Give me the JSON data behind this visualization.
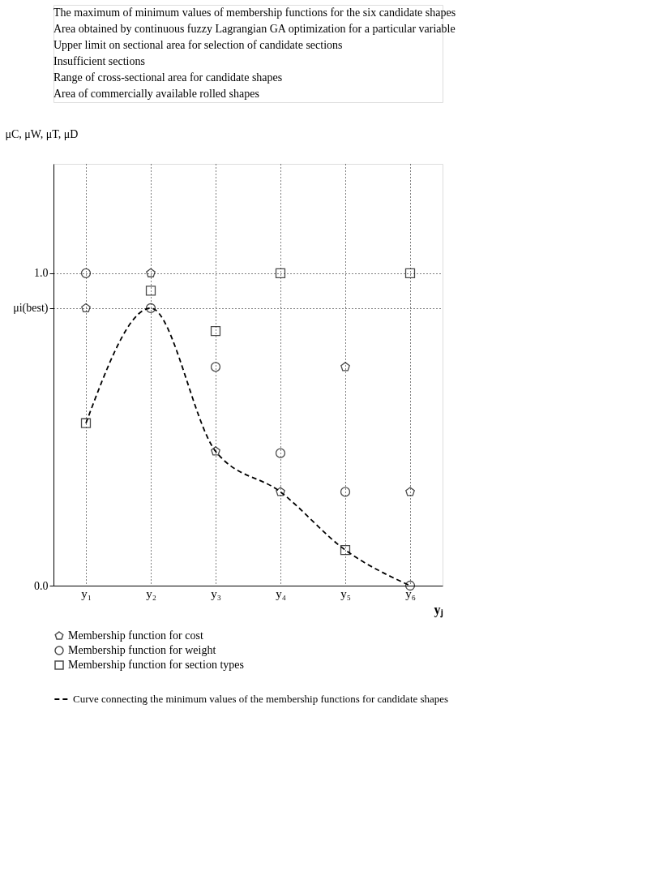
{
  "chart_data": {
    "type": "scatter",
    "xlabel": "yⱼ",
    "ylabel": "μC, μW, μT, μD",
    "categories": [
      "y₁",
      "y₂",
      "y₃",
      "y₄",
      "y₅",
      "y₆"
    ],
    "series": [
      {
        "name": "Membership function for cost",
        "color": "#000000",
        "values": [
          0.888,
          1.0,
          0.43,
          0.3,
          0.7,
          0.3
        ]
      },
      {
        "name": "Membership function for weight",
        "color": "#000000",
        "marker": "circle",
        "values": [
          1.0,
          0.888,
          0.7,
          0.424,
          0.3,
          0.0
        ]
      },
      {
        "name": "Membership function for section types",
        "color": "#000000",
        "marker": "square",
        "values": [
          0.52,
          0.944,
          0.815,
          1.0,
          0.114,
          1.0
        ]
      },
      {
        "name": "Curve connecting the minimum values of the membership functions for candidate shapes",
        "color": "#000000",
        "type": "line",
        "line_style": "dashed",
        "marker": "none",
        "values": [
          0.52,
          0.888,
          0.43,
          0.3,
          0.114,
          0.0
        ]
      }
    ],
    "ylim": [
      0,
      1.35
    ],
    "yticks": [
      {
        "value": 0,
        "label": "0.0"
      },
      {
        "value": 0.888,
        "label": "μi(best)"
      },
      {
        "value": 1,
        "label": "1.0"
      }
    ],
    "grid": true,
    "legend": "bottom",
    "annotations": [
      "The maximum of minimum values of membership functions for the six candidate shapes",
      "Area obtained by continuous fuzzy Lagrangian GA optimization for a particular variable",
      "Upper limit on sectional area for selection of candidate sections",
      "Insufficient sections",
      "Range of cross-sectional area for candidate shapes",
      "Area of commercially available rolled shapes"
    ]
  }
}
